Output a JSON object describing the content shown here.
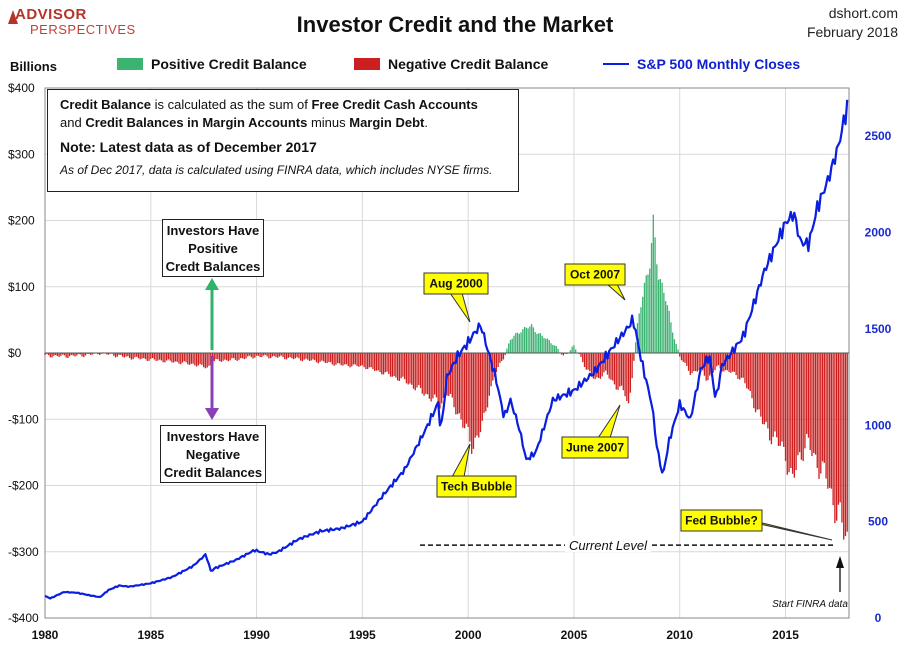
{
  "header": {
    "logo_main": "ADVISOR",
    "logo_sub": "PERSPECTIVES",
    "title": "Investor Credit and the Market",
    "source_line1": "dshort.com",
    "source_line2": "February 2018",
    "units_label": "Billions"
  },
  "legend": {
    "positive": "Positive Credit Balance",
    "negative": "Negative Credit Balance",
    "sp500": "S&P 500 Monthly Closes"
  },
  "info_box": {
    "line1_prefix": "Credit Balance",
    "line1_middle": " is calculated as the sum of ",
    "line1_bold": "Free Credit Cash Accounts",
    "line2_prefix": "and ",
    "line2_bold": "Credit Balances in Margin Accounts",
    "line2_middle": " minus ",
    "line2_bold2": "Margin Debt",
    "line2_end": ".",
    "note": "Note: Latest data as of December 2017",
    "italic_note": "As of Dec 2017, data is calculated using FINRA data, which includes NYSE firms."
  },
  "annotations": {
    "positive_box": [
      "Investors Have",
      "Positive",
      "Credt Balances"
    ],
    "negative_box": [
      "Investors Have",
      "Negative",
      "Credit Balances"
    ],
    "aug2000": "Aug 2000",
    "oct2007": "Oct 2007",
    "tech_bubble": "Tech Bubble",
    "june2007": "June 2007",
    "fed_bubble": "Fed Bubble?",
    "current_level": "Current Level",
    "start_finra": "Start FINRA data"
  },
  "colors": {
    "positive": "#3cb371",
    "negative": "#cc1f1f",
    "sp500": "#0a1ee0",
    "callout_yellow": "#ffff00",
    "arrow_green": "#2db36a",
    "arrow_purple": "#8a3fb8",
    "grid": "#d9d9d9"
  },
  "chart_data": {
    "type": "bar",
    "x_range": [
      1980,
      2018
    ],
    "x_ticks": [
      1980,
      1985,
      1990,
      1995,
      2000,
      2005,
      2010,
      2015
    ],
    "left_axis": {
      "label": "Billions",
      "range": [
        -400,
        400
      ],
      "ticks": [
        400,
        300,
        200,
        100,
        0,
        -100,
        -200,
        -300,
        -400
      ],
      "tick_labels": [
        "$400",
        "$300",
        "$200",
        "$100",
        "$0",
        "-$100",
        "-$200",
        "-$300",
        "-$400"
      ]
    },
    "right_axis": {
      "range": [
        0,
        2750
      ],
      "ticks": [
        0,
        500,
        1000,
        1500,
        2000,
        2500
      ],
      "tick_labels": [
        "0",
        "500",
        "1000",
        "1500",
        "2000",
        "2500"
      ]
    },
    "grid": true,
    "credit_balance_series": {
      "name": "Credit Balance",
      "unit": "billions",
      "points": [
        [
          1980.0,
          -4
        ],
        [
          1981.0,
          -5
        ],
        [
          1982.0,
          -3
        ],
        [
          1982.6,
          0
        ],
        [
          1983.0,
          -2
        ],
        [
          1984.0,
          -7
        ],
        [
          1985.0,
          -10
        ],
        [
          1986.0,
          -13
        ],
        [
          1987.0,
          -17
        ],
        [
          1987.7,
          -22
        ],
        [
          1988.0,
          -12
        ],
        [
          1989.0,
          -10
        ],
        [
          1990.0,
          -5
        ],
        [
          1991.0,
          -6
        ],
        [
          1992.0,
          -9
        ],
        [
          1993.0,
          -13
        ],
        [
          1994.0,
          -18
        ],
        [
          1995.0,
          -20
        ],
        [
          1996.0,
          -30
        ],
        [
          1997.0,
          -42
        ],
        [
          1998.0,
          -62
        ],
        [
          1998.7,
          -78
        ],
        [
          1999.0,
          -60
        ],
        [
          1999.6,
          -95
        ],
        [
          2000.0,
          -125
        ],
        [
          2000.2,
          -140
        ],
        [
          2000.7,
          -110
        ],
        [
          2001.0,
          -60
        ],
        [
          2001.3,
          -30
        ],
        [
          2001.7,
          -5
        ],
        [
          2002.0,
          20
        ],
        [
          2002.5,
          35
        ],
        [
          2003.0,
          40
        ],
        [
          2003.5,
          25
        ],
        [
          2004.0,
          15
        ],
        [
          2004.5,
          -5
        ],
        [
          2005.0,
          10
        ],
        [
          2005.3,
          -5
        ],
        [
          2005.6,
          -25
        ],
        [
          2006.0,
          -40
        ],
        [
          2006.5,
          -30
        ],
        [
          2007.0,
          -50
        ],
        [
          2007.4,
          -60
        ],
        [
          2007.6,
          -80
        ],
        [
          2007.8,
          -20
        ],
        [
          2008.0,
          40
        ],
        [
          2008.3,
          100
        ],
        [
          2008.6,
          140
        ],
        [
          2008.75,
          185
        ],
        [
          2009.0,
          120
        ],
        [
          2009.3,
          90
        ],
        [
          2009.6,
          40
        ],
        [
          2010.0,
          -5
        ],
        [
          2010.5,
          -30
        ],
        [
          2011.0,
          -25
        ],
        [
          2011.3,
          -40
        ],
        [
          2011.8,
          -20
        ],
        [
          2012.0,
          -25
        ],
        [
          2012.5,
          -30
        ],
        [
          2013.0,
          -40
        ],
        [
          2013.5,
          -75
        ],
        [
          2014.0,
          -110
        ],
        [
          2014.5,
          -130
        ],
        [
          2015.0,
          -150
        ],
        [
          2015.3,
          -200
        ],
        [
          2015.6,
          -160
        ],
        [
          2016.0,
          -135
        ],
        [
          2016.5,
          -165
        ],
        [
          2017.0,
          -195
        ],
        [
          2017.5,
          -250
        ],
        [
          2017.9,
          -275
        ],
        [
          2017.95,
          -288
        ]
      ]
    },
    "sp500_series": {
      "name": "S&P 500 Monthly Closes",
      "points": [
        [
          1980.0,
          114
        ],
        [
          1980.25,
          102
        ],
        [
          1980.9,
          135
        ],
        [
          1981.5,
          131
        ],
        [
          1982.0,
          120
        ],
        [
          1982.6,
          108
        ],
        [
          1983.0,
          145
        ],
        [
          1983.5,
          168
        ],
        [
          1984.0,
          163
        ],
        [
          1985.0,
          180
        ],
        [
          1986.0,
          212
        ],
        [
          1987.0,
          270
        ],
        [
          1987.6,
          330
        ],
        [
          1987.85,
          240
        ],
        [
          1988.0,
          257
        ],
        [
          1989.0,
          300
        ],
        [
          1989.9,
          352
        ],
        [
          1990.6,
          330
        ],
        [
          1991.0,
          343
        ],
        [
          1992.0,
          410
        ],
        [
          1993.0,
          450
        ],
        [
          1994.0,
          465
        ],
        [
          1995.0,
          500
        ],
        [
          1996.0,
          640
        ],
        [
          1997.0,
          770
        ],
        [
          1998.0,
          980
        ],
        [
          1998.6,
          1120
        ],
        [
          1998.7,
          960
        ],
        [
          1999.0,
          1250
        ],
        [
          1999.5,
          1360
        ],
        [
          2000.0,
          1430
        ],
        [
          2000.3,
          1480
        ],
        [
          2000.6,
          1520
        ],
        [
          2000.9,
          1400
        ],
        [
          2001.3,
          1250
        ],
        [
          2001.7,
          1040
        ],
        [
          2002.0,
          1130
        ],
        [
          2002.4,
          990
        ],
        [
          2002.75,
          820
        ],
        [
          2003.2,
          860
        ],
        [
          2004.0,
          1130
        ],
        [
          2005.0,
          1180
        ],
        [
          2006.0,
          1280
        ],
        [
          2007.0,
          1430
        ],
        [
          2007.5,
          1500
        ],
        [
          2007.8,
          1550
        ],
        [
          2008.2,
          1330
        ],
        [
          2008.7,
          1100
        ],
        [
          2008.9,
          900
        ],
        [
          2009.2,
          735
        ],
        [
          2009.5,
          920
        ],
        [
          2010.0,
          1110
        ],
        [
          2010.5,
          1030
        ],
        [
          2011.0,
          1290
        ],
        [
          2011.4,
          1360
        ],
        [
          2011.7,
          1130
        ],
        [
          2012.0,
          1310
        ],
        [
          2013.0,
          1460
        ],
        [
          2014.0,
          1800
        ],
        [
          2015.0,
          2050
        ],
        [
          2015.4,
          2100
        ],
        [
          2015.7,
          1950
        ],
        [
          2016.1,
          1940
        ],
        [
          2016.5,
          2130
        ],
        [
          2017.0,
          2270
        ],
        [
          2017.5,
          2450
        ],
        [
          2017.95,
          2670
        ]
      ]
    }
  }
}
